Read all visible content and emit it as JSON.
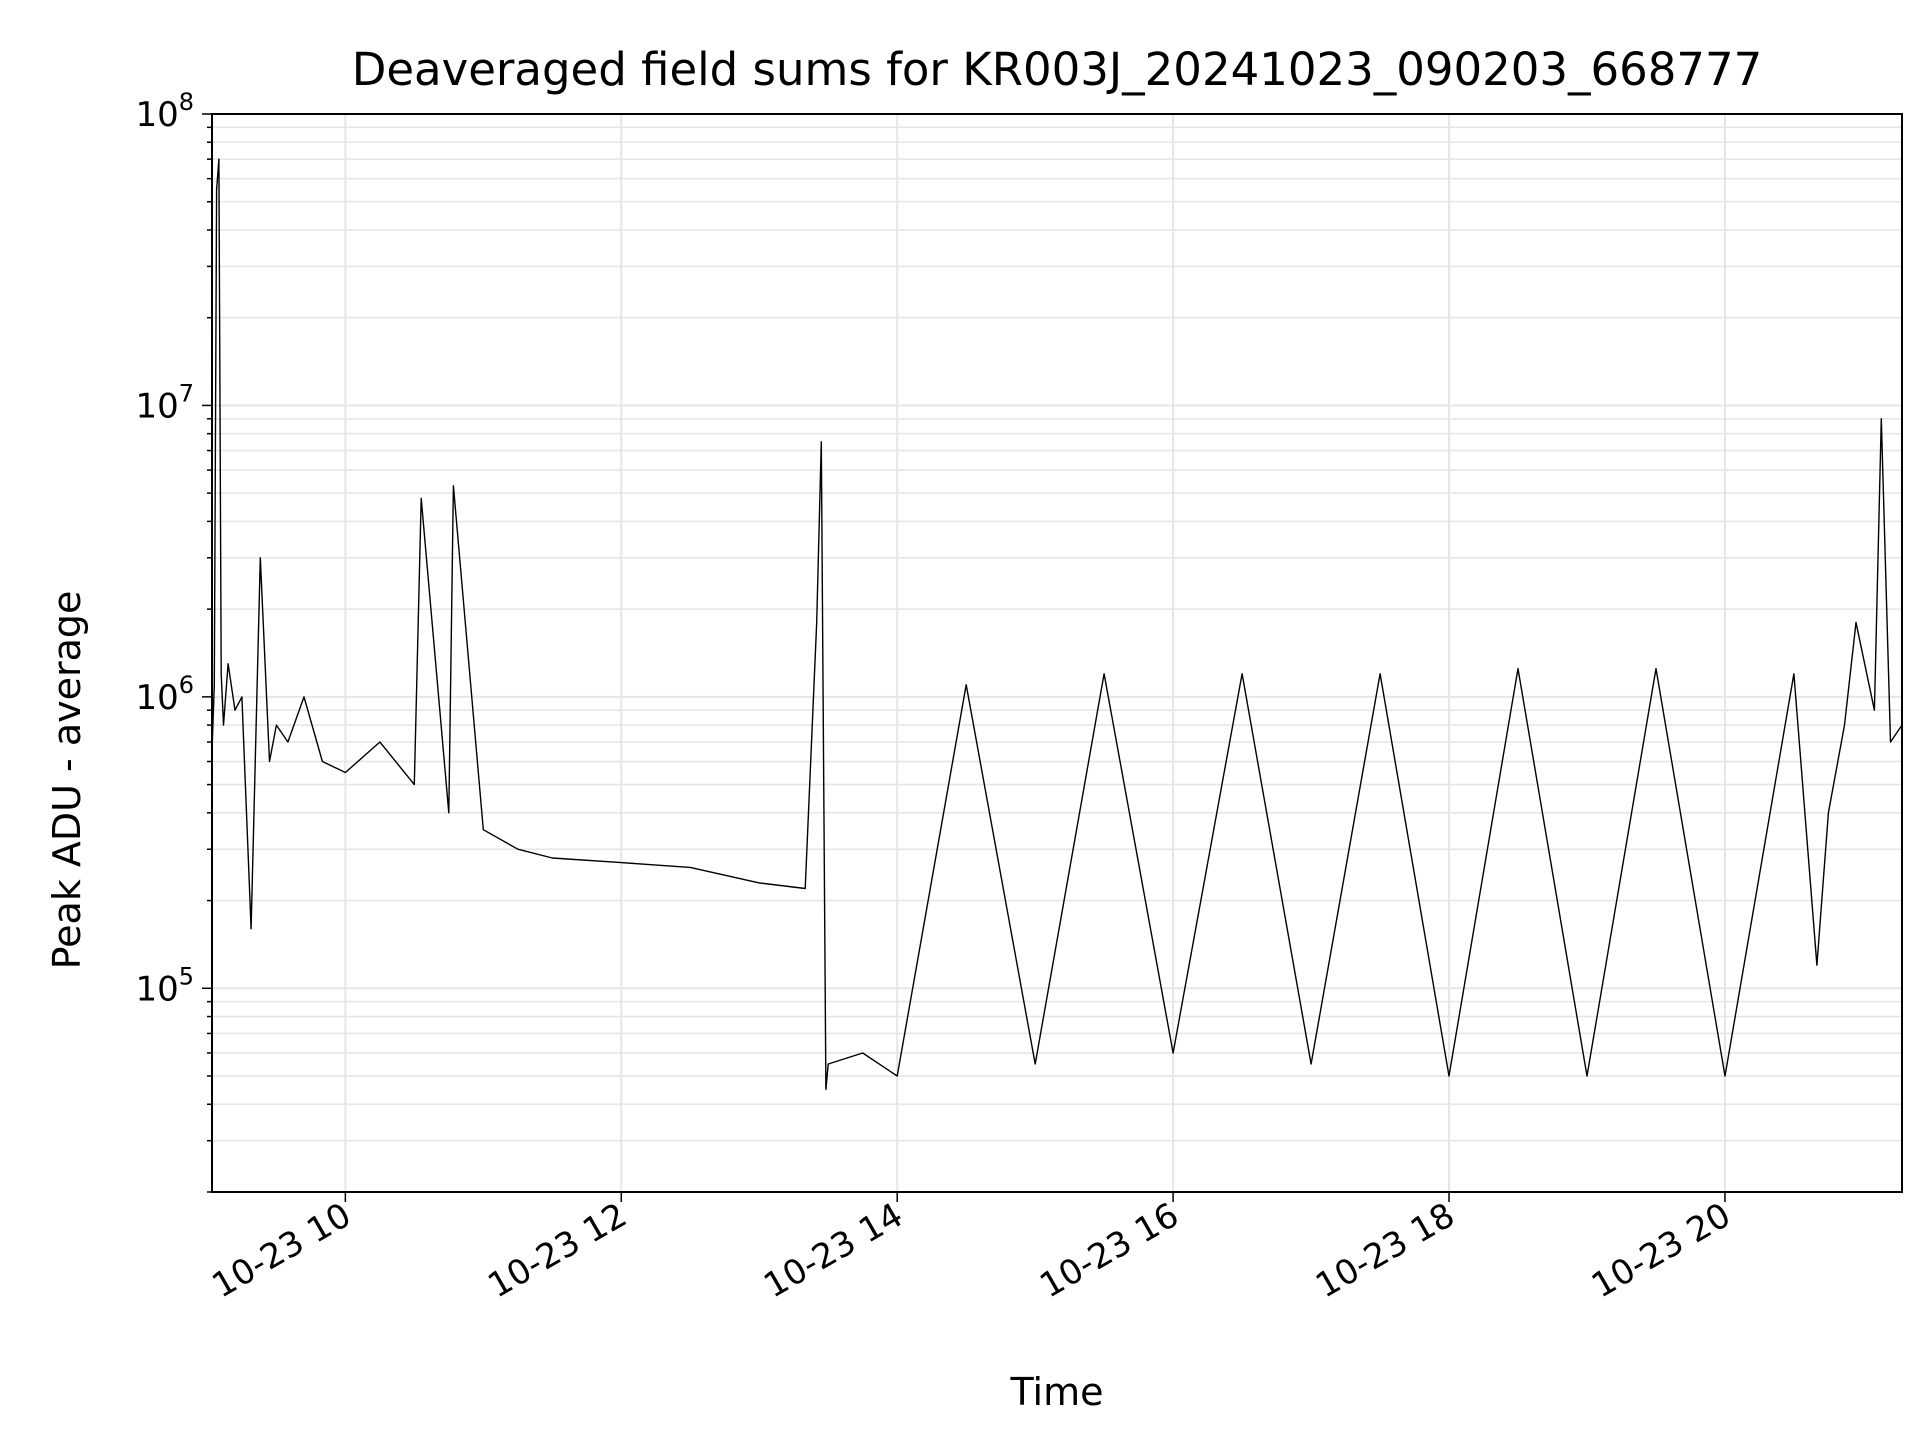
{
  "chart_data": {
    "type": "line",
    "title": "Deaveraged field sums for KR003J_20241023_090203_668777",
    "xlabel": "Time",
    "ylabel": "Peak ADU - average",
    "x_axis_kind": "datetime",
    "xlim": [
      "2024-10-23 09:02",
      "2024-10-23 21:17"
    ],
    "ylim": [
      20000,
      100000000
    ],
    "yscale": "log",
    "grid": true,
    "legend": "none",
    "line_color": "#000000",
    "x_ticks": [
      {
        "value": "2024-10-23 10:00",
        "label": "10-23 10"
      },
      {
        "value": "2024-10-23 12:00",
        "label": "10-23 12"
      },
      {
        "value": "2024-10-23 14:00",
        "label": "10-23 14"
      },
      {
        "value": "2024-10-23 16:00",
        "label": "10-23 16"
      },
      {
        "value": "2024-10-23 18:00",
        "label": "10-23 18"
      },
      {
        "value": "2024-10-23 20:00",
        "label": "10-23 20"
      }
    ],
    "y_ticks": [
      {
        "value": 100000,
        "base": "10",
        "exp": "5"
      },
      {
        "value": 1000000,
        "base": "10",
        "exp": "6"
      },
      {
        "value": 10000000,
        "base": "10",
        "exp": "7"
      },
      {
        "value": 100000000,
        "base": "10",
        "exp": "8"
      }
    ],
    "series": [
      {
        "color": "#000000",
        "x": [
          "2024-10-23 09:02",
          "2024-10-23 09:03",
          "2024-10-23 09:04",
          "2024-10-23 09:05",
          "2024-10-23 09:06",
          "2024-10-23 09:07",
          "2024-10-23 09:09",
          "2024-10-23 09:12",
          "2024-10-23 09:15",
          "2024-10-23 09:19",
          "2024-10-23 09:23",
          "2024-10-23 09:27",
          "2024-10-23 09:30",
          "2024-10-23 09:35",
          "2024-10-23 09:42",
          "2024-10-23 09:50",
          "2024-10-23 10:00",
          "2024-10-23 10:15",
          "2024-10-23 10:30",
          "2024-10-23 10:33",
          "2024-10-23 10:45",
          "2024-10-23 10:47",
          "2024-10-23 11:00",
          "2024-10-23 11:15",
          "2024-10-23 11:30",
          "2024-10-23 12:00",
          "2024-10-23 12:30",
          "2024-10-23 13:00",
          "2024-10-23 13:20",
          "2024-10-23 13:25",
          "2024-10-23 13:27",
          "2024-10-23 13:29",
          "2024-10-23 13:30",
          "2024-10-23 13:45",
          "2024-10-23 14:00",
          "2024-10-23 14:30",
          "2024-10-23 15:00",
          "2024-10-23 15:30",
          "2024-10-23 16:00",
          "2024-10-23 16:30",
          "2024-10-23 17:00",
          "2024-10-23 17:30",
          "2024-10-23 18:00",
          "2024-10-23 18:30",
          "2024-10-23 19:00",
          "2024-10-23 19:30",
          "2024-10-23 20:00",
          "2024-10-23 20:30",
          "2024-10-23 20:40",
          "2024-10-23 20:45",
          "2024-10-23 20:52",
          "2024-10-23 20:57",
          "2024-10-23 21:05",
          "2024-10-23 21:08",
          "2024-10-23 21:12",
          "2024-10-23 21:17"
        ],
        "y": [
          650000,
          1100000,
          55000000,
          70000000,
          1200000,
          800000,
          1300000,
          900000,
          1000000,
          160000,
          3000000,
          600000,
          800000,
          700000,
          1000000,
          600000,
          550000,
          700000,
          500000,
          4800000,
          400000,
          5300000,
          350000,
          300000,
          280000,
          270000,
          260000,
          230000,
          220000,
          1800000,
          7500000,
          45000,
          55000,
          60000,
          50000,
          1100000,
          55000,
          1200000,
          60000,
          1200000,
          55000,
          1200000,
          50000,
          1250000,
          50000,
          1250000,
          50000,
          1200000,
          120000,
          400000,
          800000,
          1800000,
          900000,
          9000000,
          700000,
          800000
        ]
      }
    ]
  }
}
